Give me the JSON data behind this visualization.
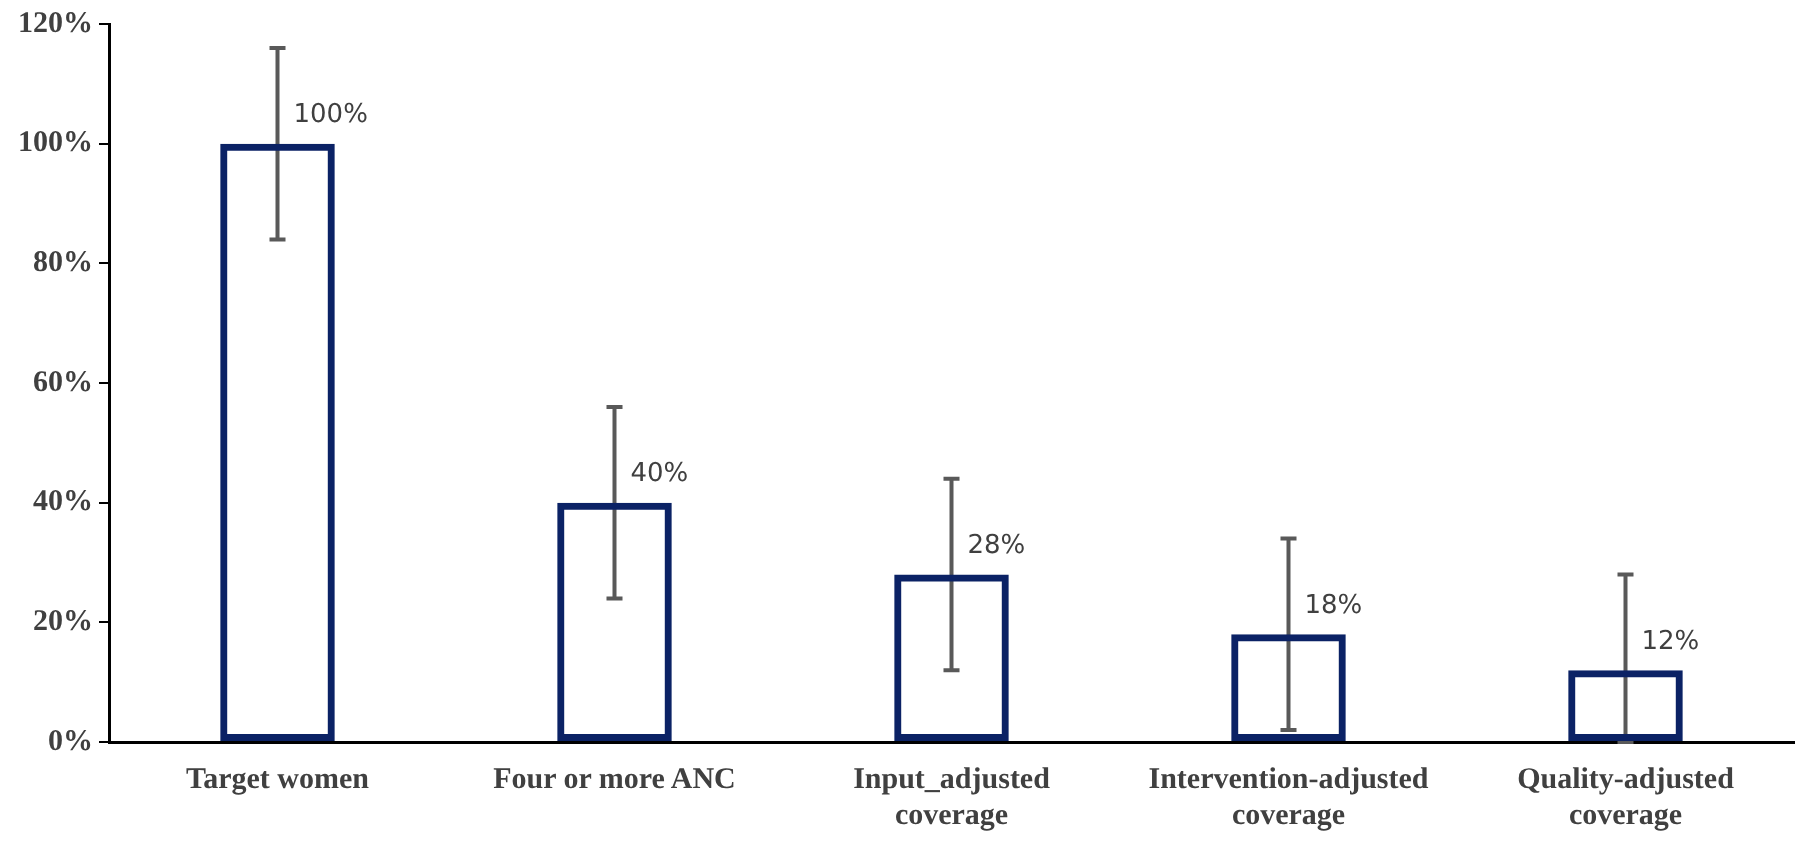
{
  "chart_data": {
    "type": "bar",
    "categories": [
      "Target women",
      "Four or more ANC",
      "Input_adjusted coverage",
      "Intervention-adjusted coverage",
      "Quality-adjusted coverage"
    ],
    "values": [
      100,
      40,
      28,
      18,
      12
    ],
    "errors": [
      16,
      16,
      16,
      16,
      [
        0,
        28
      ]
    ],
    "value_labels": [
      "100%",
      "40%",
      "28%",
      "18%",
      "12%"
    ],
    "color": "#0b2265",
    "ylim": [
      0,
      120
    ],
    "yticks": [
      {
        "value": 0,
        "label": "0%"
      },
      {
        "value": 20,
        "label": "20%"
      },
      {
        "value": 40,
        "label": "40%"
      },
      {
        "value": 60,
        "label": "60%"
      },
      {
        "value": 80,
        "label": "80%"
      },
      {
        "value": 100,
        "label": "100%"
      },
      {
        "value": 120,
        "label": "120%"
      }
    ],
    "grid": false,
    "legend": false
  }
}
